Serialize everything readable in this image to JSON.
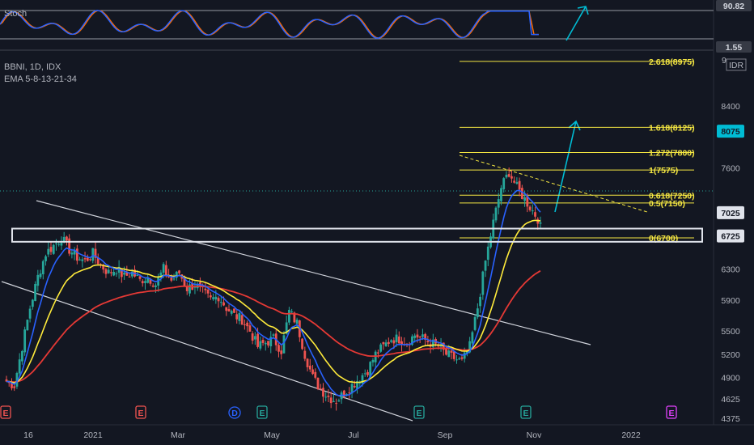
{
  "stoch_pane": {
    "label": "Stoch",
    "upper_value": "90.82",
    "lower_value": "1.55",
    "series": [
      {
        "name": "%K",
        "color": "#2962ff"
      },
      {
        "name": "%D",
        "color": "#ff6d00"
      }
    ]
  },
  "main_pane": {
    "symbol_line": "BBNI, 1D, IDX",
    "indicator_line": "EMA 5-8-13-21-34",
    "currency": "IDR",
    "top_axis_value": "9"
  },
  "colors": {
    "background": "#131722",
    "candle_up": "#26a69a",
    "candle_down": "#ef5350",
    "ema_fast": "#2962ff",
    "ema_mid": "#ffeb3b",
    "ema_slow": "#e53935",
    "fib": "#f5e742",
    "arrow": "#00bcd4",
    "trendline": "#d1d4dc"
  },
  "chart_data": {
    "type": "candlestick",
    "title": "BBNI, 1D, IDX",
    "ylim": [
      4375,
      9000
    ],
    "y_ticks": [
      4375,
      4625,
      4900,
      5200,
      5500,
      5900,
      6300,
      6725,
      7025,
      7600,
      8075,
      8400
    ],
    "x_ticks": [
      "16",
      "2021",
      "Mar",
      "May",
      "Jul",
      "Sep",
      "Nov",
      "2022"
    ],
    "price_tags": [
      {
        "value": 8075,
        "label": "8075",
        "bg": "#00bcd4",
        "fg": "#131722"
      },
      {
        "value": 7025,
        "label": "7025",
        "bg": "#e0e3eb",
        "fg": "#131722"
      },
      {
        "value": 6725,
        "label": "6725",
        "bg": "#e0e3eb",
        "fg": "#131722"
      }
    ],
    "fib_levels": [
      {
        "label": "2.618(8975)",
        "value": 8975
      },
      {
        "label": "1.618(8125)",
        "value": 8125
      },
      {
        "label": "1.272(7800)",
        "value": 7800
      },
      {
        "label": "1(7575)",
        "value": 7575
      },
      {
        "label": "0.618(7250)",
        "value": 7250
      },
      {
        "label": "0.5(7150)",
        "value": 7150
      },
      {
        "label": "0(6700)",
        "value": 6700
      }
    ],
    "support_zone": [
      6650,
      6820
    ],
    "earnings_markers": [
      {
        "x": "Dec 2020",
        "letter": "E",
        "color": "#ef5350"
      },
      {
        "x": "Feb 2021",
        "letter": "E",
        "color": "#ef5350"
      },
      {
        "x": "Apr 2021",
        "letter": "D",
        "color": "#2962ff"
      },
      {
        "x": "May 2021",
        "letter": "E",
        "color": "#26a69a"
      },
      {
        "x": "Aug 2021",
        "letter": "E",
        "color": "#26a69a"
      },
      {
        "x": "Oct 2021",
        "letter": "E",
        "color": "#26a69a"
      },
      {
        "x": "Jan 2022",
        "letter": "E",
        "color": "#e040fb"
      }
    ],
    "candles_close_path": [
      4850,
      4800,
      5300,
      5800,
      6200,
      6500,
      6600,
      6700,
      6550,
      6450,
      6400,
      6500,
      6350,
      6250,
      6300,
      6200,
      6250,
      6150,
      6200,
      6100,
      6300,
      6150,
      6250,
      6050,
      6100,
      6000,
      5900,
      5950,
      5800,
      5700,
      5650,
      5500,
      5300,
      5350,
      5400,
      5250,
      5750,
      5600,
      5200,
      4900,
      4750,
      4650,
      4600,
      4700,
      4800,
      4900,
      5000,
      5200,
      5300,
      5400,
      5400,
      5350,
      5450,
      5400,
      5350,
      5300,
      5200,
      5150,
      5100,
      5300,
      5800,
      6400,
      6900,
      7350,
      7550,
      7350,
      7200,
      7050,
      6900
    ]
  }
}
